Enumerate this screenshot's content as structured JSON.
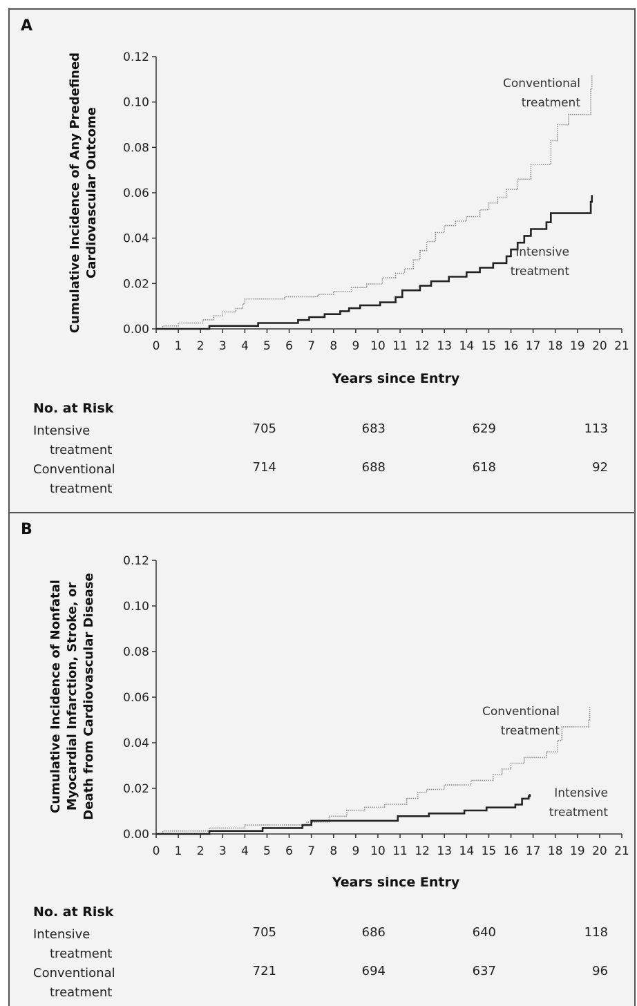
{
  "chart_data": [
    {
      "type": "line",
      "panel_label": "A",
      "xlabel": "Years since Entry",
      "ylabel": [
        "Cumulative Incidence of Any Predefined",
        "Cardiovascular Outcome"
      ],
      "xlim": [
        0,
        21
      ],
      "ylim": [
        0,
        0.12
      ],
      "x_ticks": [
        "0",
        "1",
        "2",
        "3",
        "4",
        "5",
        "6",
        "7",
        "8",
        "9",
        "10",
        "11",
        "12",
        "13",
        "14",
        "15",
        "16",
        "17",
        "18",
        "19",
        "20",
        "21"
      ],
      "y_ticks": [
        "0.00",
        "0.02",
        "0.04",
        "0.06",
        "0.08",
        "0.10",
        "0.12"
      ],
      "series": [
        {
          "name": "Conventional treatment",
          "label_lines": [
            "Conventional",
            "treatment"
          ],
          "style": "dotted",
          "x": [
            0.3,
            1.0,
            2.1,
            2.6,
            3.0,
            3.6,
            3.9,
            4.0,
            5.8,
            7.3,
            8.0,
            8.8,
            9.5,
            10.2,
            10.8,
            11.2,
            11.6,
            11.9,
            12.2,
            12.6,
            13.0,
            13.5,
            14.0,
            14.6,
            15.0,
            15.4,
            15.8,
            16.3,
            16.9,
            17.8,
            18.1,
            18.6,
            19.6,
            19.6,
            19.65
          ],
          "y": [
            0.0013,
            0.0026,
            0.004,
            0.0058,
            0.0075,
            0.009,
            0.011,
            0.0132,
            0.0142,
            0.0152,
            0.0165,
            0.0182,
            0.0198,
            0.0225,
            0.0245,
            0.0265,
            0.0305,
            0.0345,
            0.0385,
            0.0425,
            0.0455,
            0.0475,
            0.0495,
            0.0525,
            0.0555,
            0.058,
            0.0615,
            0.066,
            0.0725,
            0.083,
            0.09,
            0.0945,
            0.1,
            0.106,
            0.112
          ]
        },
        {
          "name": "Intensive treatment",
          "label_lines": [
            "Intensive",
            "treatment"
          ],
          "style": "solid",
          "x": [
            0,
            2.4,
            4.6,
            6.4,
            6.9,
            7.6,
            8.3,
            8.7,
            9.2,
            10.1,
            10.8,
            11.1,
            11.9,
            12.4,
            13.2,
            14.0,
            14.6,
            15.2,
            15.8,
            16.0,
            16.3,
            16.6,
            16.9,
            17.6,
            17.8,
            19.6,
            19.65
          ],
          "y": [
            0,
            0.0013,
            0.0026,
            0.0039,
            0.0052,
            0.0065,
            0.0078,
            0.0091,
            0.0104,
            0.0117,
            0.014,
            0.017,
            0.019,
            0.021,
            0.023,
            0.025,
            0.027,
            0.029,
            0.032,
            0.035,
            0.038,
            0.041,
            0.044,
            0.047,
            0.051,
            0.056,
            0.059
          ]
        }
      ],
      "number_at_risk": {
        "title": "No. at Risk",
        "rows": [
          {
            "label_lines": [
              "Intensive",
              "treatment"
            ],
            "values": [
              "705",
              "683",
              "629",
              "113"
            ]
          },
          {
            "label_lines": [
              "Conventional",
              "treatment"
            ],
            "values": [
              "714",
              "688",
              "618",
              "92"
            ]
          }
        ]
      }
    },
    {
      "type": "line",
      "panel_label": "B",
      "xlabel": "Years since Entry",
      "ylabel": [
        "Cumulative Incidence of Nonfatal",
        "Myocardial Infarction, Stroke, or",
        "Death from Cardiovascular Disease"
      ],
      "xlim": [
        0,
        21
      ],
      "ylim": [
        0,
        0.12
      ],
      "x_ticks": [
        "0",
        "1",
        "2",
        "3",
        "4",
        "5",
        "6",
        "7",
        "8",
        "9",
        "10",
        "11",
        "12",
        "13",
        "14",
        "15",
        "16",
        "17",
        "18",
        "19",
        "20",
        "21"
      ],
      "y_ticks": [
        "0.00",
        "0.02",
        "0.04",
        "0.06",
        "0.08",
        "0.10",
        "0.12"
      ],
      "series": [
        {
          "name": "Conventional treatment",
          "label_lines": [
            "Conventional",
            "treatment"
          ],
          "style": "dotted",
          "x": [
            0.3,
            2.4,
            4.0,
            6.8,
            7.8,
            8.6,
            9.4,
            10.3,
            11.3,
            11.8,
            12.2,
            13.0,
            14.2,
            15.2,
            15.6,
            16.0,
            16.6,
            17.6,
            18.1,
            18.3,
            19.5,
            19.55
          ],
          "y": [
            0.0013,
            0.0026,
            0.0039,
            0.0052,
            0.0078,
            0.0104,
            0.0117,
            0.013,
            0.0156,
            0.0182,
            0.0195,
            0.0215,
            0.0235,
            0.026,
            0.0285,
            0.031,
            0.0335,
            0.036,
            0.041,
            0.047,
            0.05,
            0.056
          ]
        },
        {
          "name": "Intensive treatment",
          "label_lines": [
            "Intensive",
            "treatment"
          ],
          "style": "solid",
          "x": [
            0,
            2.4,
            4.8,
            6.6,
            7.0,
            10.9,
            12.3,
            13.9,
            14.9,
            16.2,
            16.5,
            16.8,
            16.85
          ],
          "y": [
            0,
            0.0013,
            0.0026,
            0.0039,
            0.0058,
            0.0078,
            0.009,
            0.0103,
            0.0116,
            0.0129,
            0.0155,
            0.0165,
            0.0175
          ]
        }
      ],
      "number_at_risk": {
        "title": "No. at Risk",
        "rows": [
          {
            "label_lines": [
              "Intensive",
              "treatment"
            ],
            "values": [
              "705",
              "686",
              "640",
              "118"
            ]
          },
          {
            "label_lines": [
              "Conventional",
              "treatment"
            ],
            "values": [
              "721",
              "694",
              "637",
              "96"
            ]
          }
        ]
      }
    }
  ]
}
